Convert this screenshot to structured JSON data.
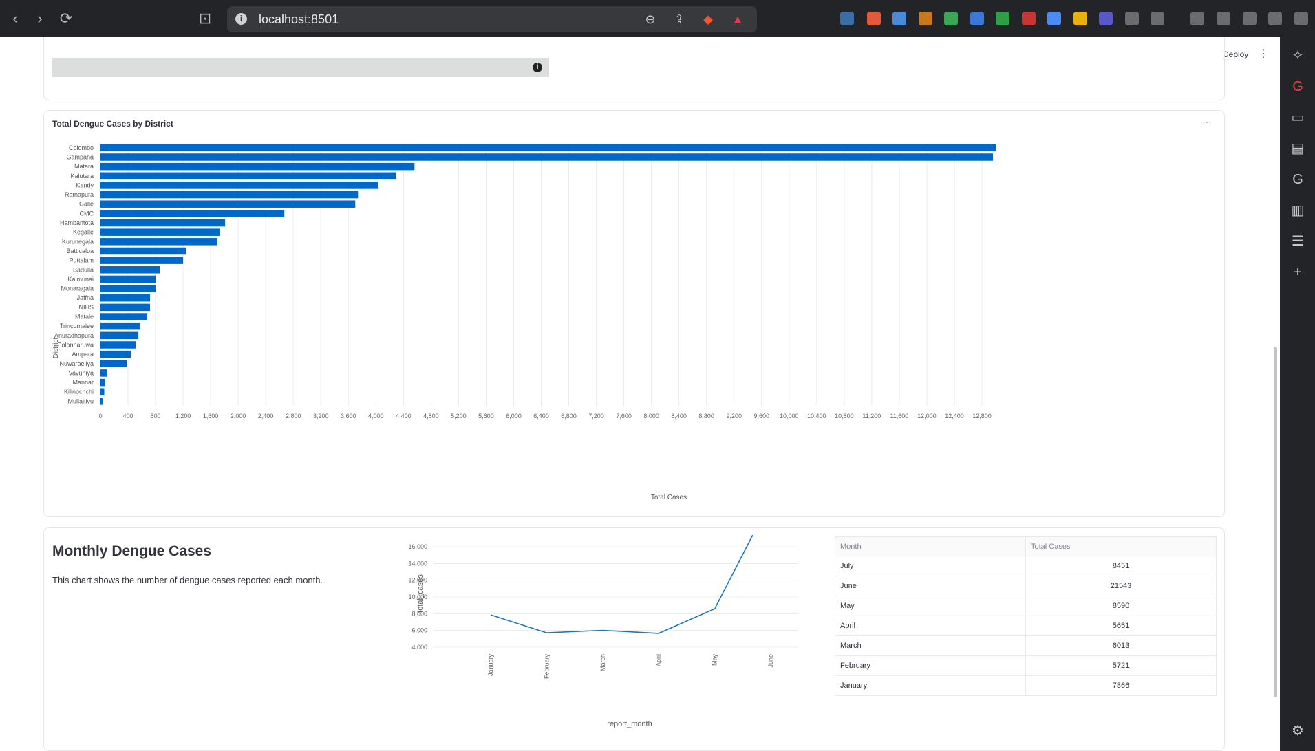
{
  "browser": {
    "url": "localhost:8501",
    "back_icon": "chevron-left-icon",
    "forward_icon": "chevron-right-icon",
    "reload_icon": "reload-icon"
  },
  "header": {
    "deploy_label": "Deploy"
  },
  "bar_chart": {
    "title": "Total Dengue Cases by District",
    "chart_data": {
      "type": "bar",
      "orientation": "horizontal",
      "xlabel": "Total Cases",
      "ylabel": "District",
      "xlim": [
        0,
        13000
      ],
      "xticks": [
        0,
        400,
        800,
        1200,
        1600,
        2000,
        2400,
        2800,
        3200,
        3600,
        4000,
        4400,
        4800,
        5200,
        5600,
        6000,
        6400,
        6800,
        7200,
        7600,
        8000,
        8400,
        8800,
        9200,
        9600,
        10000,
        10400,
        10800,
        11200,
        11600,
        12000,
        12400,
        12800
      ],
      "xtick_labels": [
        "0",
        "400",
        "800",
        "1,200",
        "1,600",
        "2,000",
        "2,400",
        "2,800",
        "3,200",
        "3,600",
        "4,000",
        "4,400",
        "4,800",
        "5,200",
        "5,600",
        "6,000",
        "6,400",
        "6,800",
        "7,200",
        "7,600",
        "8,000",
        "8,400",
        "8,800",
        "9,200",
        "9,600",
        "10,000",
        "10,400",
        "10,800",
        "11,200",
        "11,600",
        "12,000",
        "12,400",
        "12,800"
      ],
      "categories": [
        "Colombo",
        "Gampaha",
        "Matara",
        "Kalutara",
        "Kandy",
        "Ratnapura",
        "Galle",
        "CMC",
        "Hambantota",
        "Kegalle",
        "Kurunegala",
        "Batticaloa",
        "Puttalam",
        "Badulla",
        "Kalmunai",
        "Monaragala",
        "Jaffna",
        "NIHS",
        "Matale",
        "Trincomalee",
        "Anuradhapura",
        "Polonnaruwa",
        "Ampara",
        "Nuwaraeliya",
        "Vavuniya",
        "Mannar",
        "Kilinochchi",
        "Mullaitivu"
      ],
      "values": [
        13000,
        12960,
        4560,
        4290,
        4030,
        3740,
        3700,
        2670,
        1810,
        1730,
        1690,
        1240,
        1200,
        860,
        800,
        800,
        720,
        720,
        680,
        570,
        550,
        510,
        440,
        380,
        100,
        65,
        55,
        40
      ],
      "color": "#0068c9",
      "grid": true
    }
  },
  "monthly": {
    "title": "Monthly Dengue Cases",
    "description": "This chart shows the number of dengue cases reported each month.",
    "chart_data": {
      "type": "line",
      "x": [
        "January",
        "February",
        "March",
        "April",
        "May",
        "June"
      ],
      "y": [
        7866,
        5721,
        6013,
        5651,
        8590,
        21543
      ],
      "xlabel": "report_month",
      "ylabel": "total_cases",
      "ylim": [
        4000,
        17400
      ],
      "yticks": [
        4000,
        6000,
        8000,
        10000,
        12000,
        14000,
        16000
      ],
      "ytick_labels": [
        "4,000",
        "6,000",
        "8,000",
        "10,000",
        "12,000",
        "14,000",
        "16,000"
      ],
      "color": "#1f77b4",
      "grid": true
    },
    "table": {
      "headers": [
        "Month",
        "Total Cases"
      ],
      "rows": [
        [
          "July",
          "8451"
        ],
        [
          "June",
          "21543"
        ],
        [
          "May",
          "8590"
        ],
        [
          "April",
          "5651"
        ],
        [
          "March",
          "6013"
        ],
        [
          "February",
          "5721"
        ],
        [
          "January",
          "7866"
        ]
      ]
    }
  }
}
